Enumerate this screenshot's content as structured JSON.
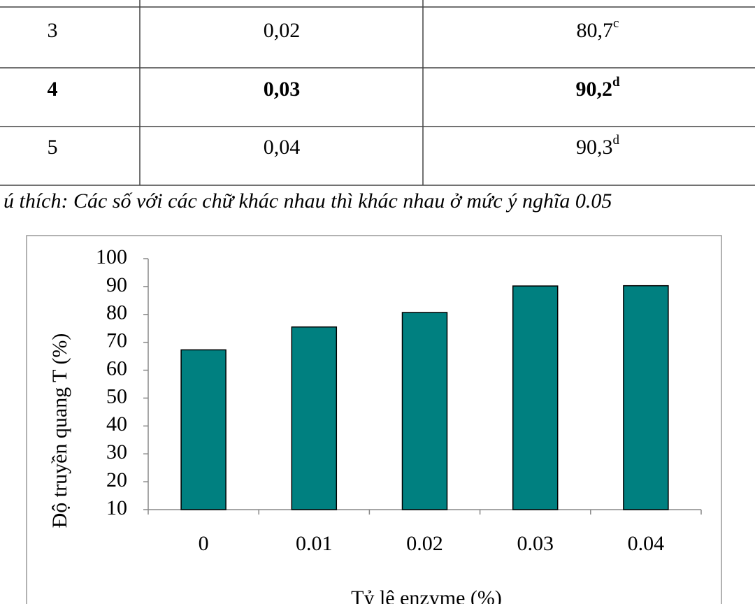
{
  "table": {
    "rows": [
      [
        "3",
        "0,02",
        "80,7",
        "c"
      ],
      [
        "4",
        "0,03",
        "90,2",
        "d"
      ],
      [
        "5",
        "0,04",
        "90,3",
        "d"
      ]
    ]
  },
  "caption": "ú thích: Các số với các chữ khác nhau thì khác nhau ở mức ý nghĩa 0.05",
  "chart_data": {
    "type": "bar",
    "x_label": "Tỷ lệ enzyme (%)",
    "y_label": "Độ truyền quang T (%)",
    "categories": [
      "0",
      "0.01",
      "0.02",
      "0.03",
      "0.04"
    ],
    "values": [
      67.3,
      75.5,
      80.7,
      90.2,
      90.3
    ],
    "color": "#008080",
    "ylim": [
      10,
      100
    ],
    "yticks": [
      10,
      20,
      30,
      40,
      50,
      60,
      70,
      80,
      90,
      100
    ]
  }
}
